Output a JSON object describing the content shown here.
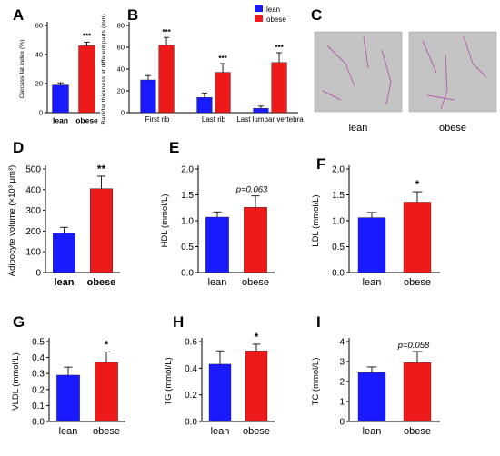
{
  "colors": {
    "lean": "#1a1aff",
    "obese": "#ee1a1a",
    "axis": "#000000"
  },
  "micrograph_labels": [
    "lean",
    "obese"
  ],
  "chart_data": [
    {
      "panel": "A",
      "type": "bar",
      "ylabel": "Carcass fat index (%)",
      "categories": [
        "lean",
        "obese"
      ],
      "values": [
        19,
        46
      ],
      "errors": [
        1.5,
        2.5
      ],
      "ylim": [
        0,
        60
      ],
      "yticks": [
        "0",
        "20",
        "40",
        "60"
      ],
      "annotation": "***"
    },
    {
      "panel": "B",
      "type": "bar",
      "ylabel": "Backfat thickness at different parts (mm)",
      "categories": [
        "First rib",
        "Last rib",
        "Last lumbar vertebra"
      ],
      "series": [
        {
          "name": "lean",
          "values": [
            30,
            14,
            4
          ],
          "errors": [
            4,
            4,
            2
          ]
        },
        {
          "name": "obese",
          "values": [
            62,
            37,
            46
          ],
          "errors": [
            7,
            8,
            9
          ]
        }
      ],
      "annotations": [
        "***",
        "***",
        "***"
      ],
      "ylim": [
        0,
        80
      ],
      "yticks": [
        "0",
        "20",
        "40",
        "60",
        "80"
      ],
      "legend": "top-right"
    },
    {
      "panel": "D",
      "type": "bar",
      "ylabel": "Adipocyte volume (×10³ μm³)",
      "categories": [
        "lean",
        "obese"
      ],
      "values": [
        190,
        405
      ],
      "errors": [
        28,
        60
      ],
      "ylim": [
        0,
        500
      ],
      "yticks": [
        "0",
        "100",
        "200",
        "300",
        "400",
        "500"
      ],
      "annotation": "**"
    },
    {
      "panel": "E",
      "type": "bar",
      "ylabel": "HDL (mmol/L)",
      "categories": [
        "lean",
        "obese"
      ],
      "values": [
        1.07,
        1.26
      ],
      "errors": [
        0.1,
        0.22
      ],
      "ylim": [
        0,
        2.0
      ],
      "yticks": [
        "0.0",
        "0.5",
        "1.0",
        "1.5",
        "2.0"
      ],
      "annotation": "p=0.063"
    },
    {
      "panel": "F",
      "type": "bar",
      "ylabel": "LDL (mmol/L)",
      "categories": [
        "lean",
        "obese"
      ],
      "values": [
        1.06,
        1.36
      ],
      "errors": [
        0.1,
        0.2
      ],
      "ylim": [
        0,
        2.0
      ],
      "yticks": [
        "0.0",
        "0.5",
        "1.0",
        "1.5",
        "2.0"
      ],
      "annotation": "*"
    },
    {
      "panel": "G",
      "type": "bar",
      "ylabel": "VLDL (mmol/L)",
      "categories": [
        "lean",
        "obese"
      ],
      "values": [
        0.29,
        0.37
      ],
      "errors": [
        0.05,
        0.065
      ],
      "ylim": [
        0,
        0.5
      ],
      "yticks": [
        "0.0",
        "0.1",
        "0.2",
        "0.3",
        "0.4",
        "0.5"
      ],
      "annotation": "*"
    },
    {
      "panel": "H",
      "type": "bar",
      "ylabel": "TG (mmol/L)",
      "categories": [
        "lean",
        "obese"
      ],
      "values": [
        0.43,
        0.53
      ],
      "errors": [
        0.1,
        0.05
      ],
      "ylim": [
        0,
        0.6
      ],
      "yticks": [
        "0.0",
        "0.2",
        "0.4",
        "0.6"
      ],
      "annotation": "*"
    },
    {
      "panel": "I",
      "type": "bar",
      "ylabel": "TC (mmol/L)",
      "categories": [
        "lean",
        "obese"
      ],
      "values": [
        2.45,
        2.95
      ],
      "errors": [
        0.28,
        0.55
      ],
      "ylim": [
        0,
        4
      ],
      "yticks": [
        "0",
        "1",
        "2",
        "3",
        "4"
      ],
      "annotation": "p=0.058"
    }
  ]
}
